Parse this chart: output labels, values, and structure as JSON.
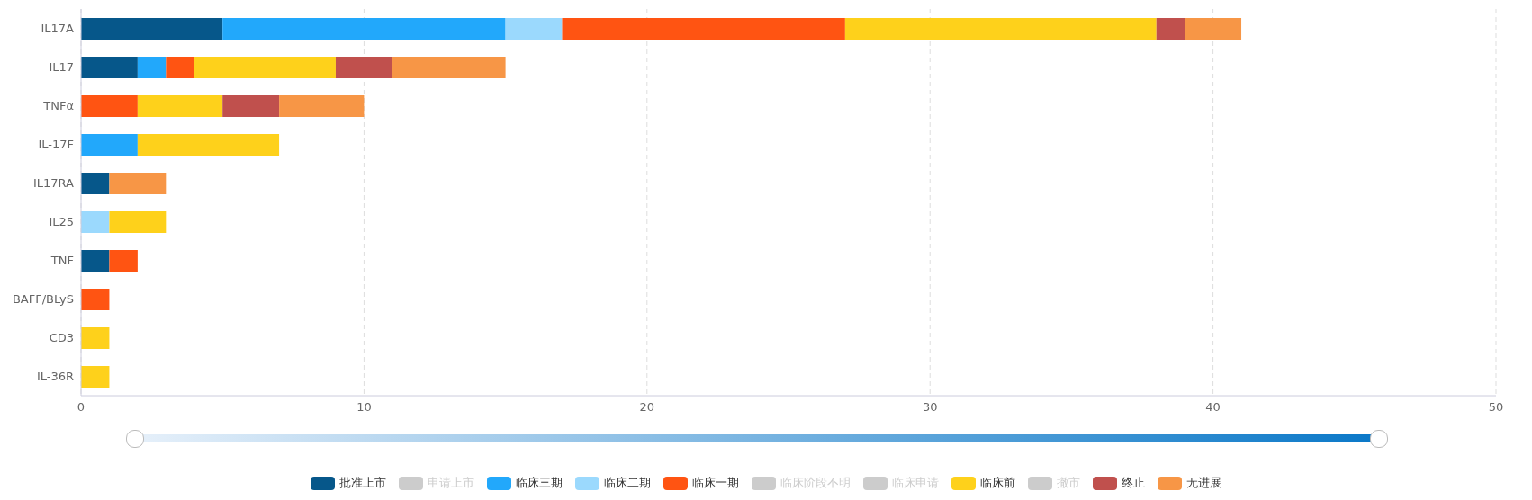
{
  "chart_data": {
    "type": "bar",
    "orientation": "horizontal",
    "stacked": true,
    "categories": [
      "IL17A",
      "IL17",
      "TNFα",
      "IL-17F",
      "IL17RA",
      "IL25",
      "TNF",
      "BAFF/BLyS",
      "CD3",
      "IL-36R"
    ],
    "series": [
      {
        "name": "批准上市",
        "color": "#06578a",
        "values": [
          5,
          2,
          null,
          null,
          1,
          null,
          1,
          null,
          null,
          null
        ]
      },
      {
        "name": "申请上市",
        "color": "#cccccc",
        "values": [
          null,
          null,
          null,
          null,
          null,
          null,
          null,
          null,
          null,
          null
        ]
      },
      {
        "name": "临床三期",
        "color": "#22a8fb",
        "values": [
          10,
          1,
          null,
          2,
          null,
          null,
          null,
          null,
          null,
          null
        ]
      },
      {
        "name": "临床二期",
        "color": "#9bd9fd",
        "values": [
          2,
          null,
          null,
          null,
          null,
          1,
          null,
          null,
          null,
          null
        ]
      },
      {
        "name": "临床一期",
        "color": "#ff5412",
        "values": [
          10,
          1,
          2,
          null,
          null,
          null,
          1,
          1,
          null,
          null
        ]
      },
      {
        "name": "临床阶段不明",
        "color": "#cccccc",
        "values": [
          null,
          null,
          null,
          null,
          null,
          null,
          null,
          null,
          null,
          null
        ]
      },
      {
        "name": "临床申请",
        "color": "#cccccc",
        "values": [
          null,
          null,
          null,
          null,
          null,
          null,
          null,
          null,
          null,
          null
        ]
      },
      {
        "name": "临床前",
        "color": "#fed11b",
        "values": [
          11,
          5,
          3,
          5,
          null,
          2,
          null,
          null,
          1,
          1
        ]
      },
      {
        "name": "撤市",
        "color": "#cccccc",
        "values": [
          null,
          null,
          null,
          null,
          null,
          null,
          null,
          null,
          null,
          null
        ]
      },
      {
        "name": "终止",
        "color": "#c0504d",
        "values": [
          1,
          2,
          2,
          null,
          null,
          null,
          null,
          null,
          null,
          null
        ]
      },
      {
        "name": "无进展",
        "color": "#f79646",
        "values": [
          2,
          4,
          3,
          null,
          2,
          null,
          null,
          null,
          null,
          null
        ]
      }
    ],
    "xlim": [
      0,
      50
    ],
    "xticks": [
      0,
      10,
      20,
      30,
      40,
      50
    ],
    "grid": "x",
    "legend": "bottom"
  }
}
